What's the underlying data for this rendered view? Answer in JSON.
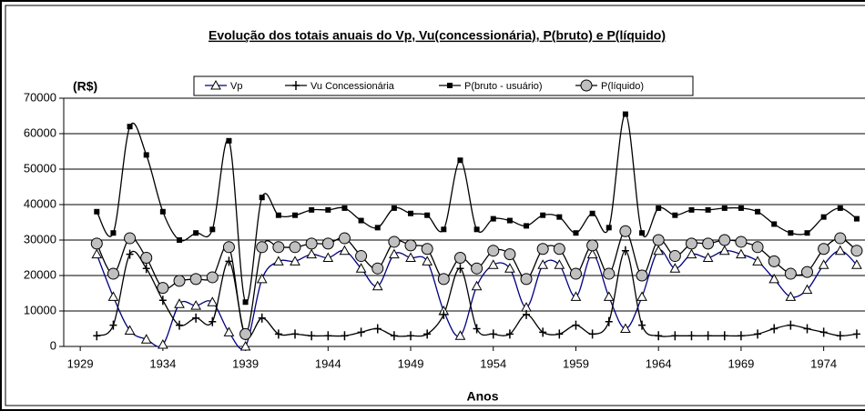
{
  "chart_data": {
    "type": "line",
    "title": "Evolução dos totais anuais do Vp, Vu(concessionária), P(bruto) e P(líquido)",
    "ylabel": "(R$)",
    "xlabel": "Anos",
    "x": [
      1930,
      1931,
      1932,
      1933,
      1934,
      1935,
      1936,
      1937,
      1938,
      1939,
      1940,
      1941,
      1942,
      1943,
      1944,
      1945,
      1946,
      1947,
      1948,
      1949,
      1950,
      1951,
      1952,
      1953,
      1954,
      1955,
      1956,
      1957,
      1958,
      1959,
      1960,
      1961,
      1962,
      1963,
      1964,
      1965,
      1966,
      1967,
      1968,
      1969,
      1970,
      1971,
      1972,
      1973,
      1974,
      1975,
      1976
    ],
    "xlim": [
      1928,
      1976.5
    ],
    "xticks": [
      1929,
      1934,
      1939,
      1944,
      1949,
      1954,
      1959,
      1964,
      1969,
      1974
    ],
    "ylim": [
      0,
      70000
    ],
    "yticks": [
      0,
      10000,
      20000,
      30000,
      40000,
      50000,
      60000,
      70000
    ],
    "grid": true,
    "series": [
      {
        "name": "Vp",
        "color": "#000080",
        "marker": "triangle",
        "marker_fill": "#ffffff",
        "values": [
          26000,
          14000,
          4500,
          2000,
          500,
          12000,
          11500,
          12500,
          4000,
          0,
          19000,
          24000,
          24000,
          26000,
          25000,
          27000,
          22000,
          17000,
          26000,
          25000,
          24000,
          10000,
          3000,
          17000,
          23000,
          22000,
          11000,
          23000,
          23000,
          14000,
          26000,
          14000,
          5000,
          14000,
          27000,
          22000,
          26000,
          25000,
          27000,
          26000,
          24000,
          19000,
          14000,
          16000,
          23000,
          27000,
          23000
        ]
      },
      {
        "name": "Vu Concessionária",
        "color": "#000000",
        "marker": "plus",
        "marker_fill": "#000000",
        "values": [
          3000,
          6000,
          26000,
          22000,
          13000,
          6000,
          8000,
          7000,
          24000,
          3000,
          8000,
          3500,
          3500,
          3000,
          3000,
          3000,
          4000,
          5000,
          3000,
          3000,
          3500,
          9000,
          22000,
          5000,
          3500,
          3500,
          9000,
          4000,
          3500,
          6000,
          3500,
          7000,
          27000,
          6000,
          3000,
          3000,
          3000,
          3000,
          3000,
          3000,
          3500,
          5000,
          6000,
          5000,
          4000,
          3000,
          3500
        ]
      },
      {
        "name": "P(bruto - usuário)",
        "color": "#000000",
        "marker": "square",
        "marker_fill": "#000000",
        "values": [
          38000,
          32000,
          62000,
          54000,
          38000,
          30000,
          32000,
          33000,
          58000,
          12500,
          42000,
          37000,
          37000,
          38500,
          38500,
          39000,
          35500,
          33500,
          39000,
          37500,
          37000,
          33000,
          52500,
          33000,
          36000,
          35500,
          34000,
          37000,
          36500,
          32000,
          37500,
          33500,
          65500,
          32000,
          39000,
          37000,
          38500,
          38500,
          39000,
          39000,
          38000,
          34500,
          32000,
          32000,
          36500,
          39000,
          36000
        ]
      },
      {
        "name": "P(líquido)",
        "color": "#000000",
        "marker": "circle",
        "marker_fill": "#c0c0c0",
        "values": [
          29000,
          20500,
          30500,
          25000,
          16500,
          18500,
          19000,
          19500,
          28000,
          3500,
          28000,
          28000,
          28000,
          29000,
          29000,
          30500,
          25500,
          22000,
          29500,
          28500,
          27500,
          19000,
          25000,
          22000,
          27000,
          26000,
          19000,
          27500,
          27500,
          20500,
          28500,
          20500,
          32500,
          20000,
          30000,
          25500,
          29000,
          29000,
          30000,
          29500,
          28000,
          24000,
          20500,
          21000,
          27500,
          30500,
          27000
        ]
      }
    ]
  }
}
